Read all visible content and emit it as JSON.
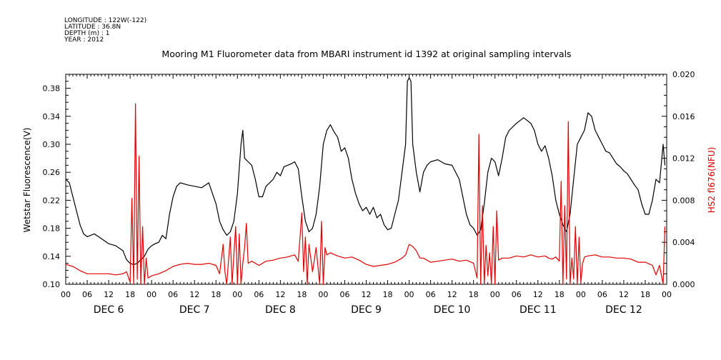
{
  "header_info": {
    "longitude": "LONGITUDE : 122W(-122)",
    "latitude": "LATITUDE : 36.8N",
    "depth": "DEPTH (m) : 1",
    "year": "YEAR : 2012"
  },
  "chart_data": {
    "type": "line",
    "title": "Mooring M1 Fluorometer data from MBARI instrument id 1392 at original sampling intervals",
    "xlabel": "",
    "ylabel": "Wetstar Fluorescence(V)",
    "y2label": "HS2 fl676(NFU)",
    "xlim": [
      0,
      168
    ],
    "ylim": [
      0.1,
      0.4
    ],
    "y2lim": [
      0.0,
      0.02
    ],
    "yticks": [
      "0.10",
      "0.14",
      "0.18",
      "0.22",
      "0.26",
      "0.30",
      "0.34",
      "0.38"
    ],
    "y2ticks": [
      "0.000",
      "0.004",
      "0.008",
      "0.012",
      "0.016",
      "0.020"
    ],
    "hour_tick_labels": [
      "00",
      "06",
      "12",
      "18",
      "00",
      "06",
      "12",
      "18",
      "00",
      "06",
      "12",
      "18",
      "00",
      "06",
      "12",
      "18",
      "00",
      "06",
      "12",
      "18",
      "00",
      "06",
      "12",
      "18",
      "00",
      "06",
      "12",
      "18",
      "00"
    ],
    "day_labels": [
      "DEC  6",
      "DEC  7",
      "DEC  8",
      "DEC  9",
      "DEC 10",
      "DEC 11",
      "DEC 12"
    ],
    "series": [
      {
        "name": "Wetstar Fluorescence(V)",
        "color": "#000000",
        "axis": "left",
        "points": [
          [
            0,
            0.25
          ],
          [
            1,
            0.245
          ],
          [
            2,
            0.225
          ],
          [
            3,
            0.205
          ],
          [
            4,
            0.185
          ],
          [
            5,
            0.172
          ],
          [
            6,
            0.168
          ],
          [
            8,
            0.172
          ],
          [
            10,
            0.165
          ],
          [
            12,
            0.158
          ],
          [
            14,
            0.155
          ],
          [
            16,
            0.148
          ],
          [
            17,
            0.135
          ],
          [
            18,
            0.13
          ],
          [
            19,
            0.128
          ],
          [
            20,
            0.13
          ],
          [
            21,
            0.135
          ],
          [
            22,
            0.14
          ],
          [
            23,
            0.15
          ],
          [
            24,
            0.155
          ],
          [
            25,
            0.158
          ],
          [
            26,
            0.16
          ],
          [
            27,
            0.17
          ],
          [
            28,
            0.165
          ],
          [
            29,
            0.2
          ],
          [
            30,
            0.225
          ],
          [
            31,
            0.24
          ],
          [
            32,
            0.245
          ],
          [
            34,
            0.242
          ],
          [
            36,
            0.24
          ],
          [
            38,
            0.238
          ],
          [
            40,
            0.245
          ],
          [
            41,
            0.23
          ],
          [
            42,
            0.215
          ],
          [
            43,
            0.19
          ],
          [
            44,
            0.178
          ],
          [
            45,
            0.17
          ],
          [
            46,
            0.175
          ],
          [
            47,
            0.19
          ],
          [
            48,
            0.23
          ],
          [
            49,
            0.3
          ],
          [
            49.5,
            0.32
          ],
          [
            50,
            0.28
          ],
          [
            51,
            0.275
          ],
          [
            52,
            0.27
          ],
          [
            53,
            0.25
          ],
          [
            54,
            0.225
          ],
          [
            55,
            0.225
          ],
          [
            56,
            0.24
          ],
          [
            57,
            0.245
          ],
          [
            58,
            0.25
          ],
          [
            59,
            0.26
          ],
          [
            60,
            0.255
          ],
          [
            61,
            0.268
          ],
          [
            62,
            0.27
          ],
          [
            63,
            0.272
          ],
          [
            64,
            0.275
          ],
          [
            65,
            0.265
          ],
          [
            66,
            0.225
          ],
          [
            67,
            0.19
          ],
          [
            68,
            0.175
          ],
          [
            69,
            0.18
          ],
          [
            70,
            0.2
          ],
          [
            71,
            0.24
          ],
          [
            72,
            0.3
          ],
          [
            73,
            0.32
          ],
          [
            74,
            0.328
          ],
          [
            75,
            0.318
          ],
          [
            76,
            0.31
          ],
          [
            77,
            0.29
          ],
          [
            78,
            0.295
          ],
          [
            79,
            0.28
          ],
          [
            80,
            0.25
          ],
          [
            81,
            0.23
          ],
          [
            82,
            0.215
          ],
          [
            83,
            0.205
          ],
          [
            84,
            0.21
          ],
          [
            85,
            0.2
          ],
          [
            86,
            0.21
          ],
          [
            87,
            0.195
          ],
          [
            88,
            0.2
          ],
          [
            89,
            0.185
          ],
          [
            90,
            0.178
          ],
          [
            91,
            0.18
          ],
          [
            92,
            0.2
          ],
          [
            93,
            0.22
          ],
          [
            94,
            0.26
          ],
          [
            95,
            0.3
          ],
          [
            95.5,
            0.39
          ],
          [
            96,
            0.395
          ],
          [
            96.5,
            0.39
          ],
          [
            97,
            0.3
          ],
          [
            98,
            0.26
          ],
          [
            99,
            0.232
          ],
          [
            100,
            0.26
          ],
          [
            101,
            0.27
          ],
          [
            102,
            0.275
          ],
          [
            104,
            0.278
          ],
          [
            106,
            0.272
          ],
          [
            108,
            0.27
          ],
          [
            110,
            0.25
          ],
          [
            111,
            0.225
          ],
          [
            112,
            0.2
          ],
          [
            113,
            0.185
          ],
          [
            114,
            0.18
          ],
          [
            115,
            0.17
          ],
          [
            116,
            0.178
          ],
          [
            117,
            0.215
          ],
          [
            118,
            0.26
          ],
          [
            119,
            0.28
          ],
          [
            120,
            0.275
          ],
          [
            121,
            0.255
          ],
          [
            122,
            0.28
          ],
          [
            123,
            0.31
          ],
          [
            124,
            0.32
          ],
          [
            125,
            0.325
          ],
          [
            126,
            0.33
          ],
          [
            127,
            0.334
          ],
          [
            128,
            0.338
          ],
          [
            129,
            0.334
          ],
          [
            130,
            0.33
          ],
          [
            131,
            0.32
          ],
          [
            132,
            0.3
          ],
          [
            133,
            0.29
          ],
          [
            134,
            0.298
          ],
          [
            135,
            0.28
          ],
          [
            136,
            0.255
          ],
          [
            137,
            0.22
          ],
          [
            138,
            0.2
          ],
          [
            139,
            0.185
          ],
          [
            140,
            0.175
          ],
          [
            141,
            0.2
          ],
          [
            142,
            0.25
          ],
          [
            143,
            0.3
          ],
          [
            144,
            0.31
          ],
          [
            145,
            0.32
          ],
          [
            146,
            0.345
          ],
          [
            147,
            0.34
          ],
          [
            148,
            0.32
          ],
          [
            149,
            0.31
          ],
          [
            150,
            0.3
          ],
          [
            151,
            0.29
          ],
          [
            152,
            0.288
          ],
          [
            153,
            0.28
          ],
          [
            154,
            0.272
          ],
          [
            155,
            0.268
          ],
          [
            156,
            0.262
          ],
          [
            157,
            0.258
          ],
          [
            158,
            0.25
          ],
          [
            159,
            0.242
          ],
          [
            160,
            0.235
          ],
          [
            161,
            0.215
          ],
          [
            162,
            0.2
          ],
          [
            163,
            0.2
          ],
          [
            164,
            0.22
          ],
          [
            165,
            0.25
          ],
          [
            166,
            0.245
          ],
          [
            167,
            0.3
          ],
          [
            167.5,
            0.27
          ]
        ]
      },
      {
        "name": "HS2 fl676(NFU)",
        "color": "#e00000",
        "axis": "right",
        "points": [
          [
            0,
            0.0019
          ],
          [
            2,
            0.0017
          ],
          [
            4,
            0.0013
          ],
          [
            6,
            0.001
          ],
          [
            8,
            0.001
          ],
          [
            10,
            0.001
          ],
          [
            12,
            0.001
          ],
          [
            14,
            0.0009
          ],
          [
            16,
            0.001
          ],
          [
            17,
            0.0012
          ],
          [
            18,
            0.0002
          ],
          [
            18.5,
            0.0082
          ],
          [
            19,
            0.0
          ],
          [
            19.5,
            0.0172
          ],
          [
            20,
            0.0005
          ],
          [
            20.5,
            0.0122
          ],
          [
            21,
            0.0
          ],
          [
            21.5,
            0.0055
          ],
          [
            22,
            0.0
          ],
          [
            22.5,
            0.0025
          ],
          [
            23,
            0.0006
          ],
          [
            24,
            0.0008
          ],
          [
            26,
            0.001
          ],
          [
            28,
            0.0013
          ],
          [
            30,
            0.0017
          ],
          [
            32,
            0.0019
          ],
          [
            34,
            0.002
          ],
          [
            36,
            0.0019
          ],
          [
            38,
            0.0019
          ],
          [
            40,
            0.002
          ],
          [
            42,
            0.0018
          ],
          [
            43,
            0.001
          ],
          [
            44,
            0.0038
          ],
          [
            44.5,
            0.0012
          ],
          [
            45,
            0.0
          ],
          [
            46,
            0.0045
          ],
          [
            46.5,
            0.0
          ],
          [
            47,
            0.0028
          ],
          [
            47.5,
            0.0055
          ],
          [
            48,
            0.0
          ],
          [
            48.5,
            0.0048
          ],
          [
            49,
            0.0
          ],
          [
            49.5,
            0.002
          ],
          [
            50,
            0.0035
          ],
          [
            50.5,
            0.0058
          ],
          [
            51,
            0.002
          ],
          [
            52,
            0.0022
          ],
          [
            54,
            0.0018
          ],
          [
            56,
            0.0022
          ],
          [
            58,
            0.0023
          ],
          [
            60,
            0.0025
          ],
          [
            62,
            0.0026
          ],
          [
            64,
            0.0028
          ],
          [
            65,
            0.0022
          ],
          [
            66,
            0.0068
          ],
          [
            66.5,
            0.0012
          ],
          [
            67,
            0.0045
          ],
          [
            67.5,
            0.0
          ],
          [
            68,
            0.0038
          ],
          [
            69,
            0.0012
          ],
          [
            70,
            0.0035
          ],
          [
            71,
            0.0
          ],
          [
            71.5,
            0.006
          ],
          [
            72,
            0.0
          ],
          [
            72.5,
            0.0035
          ],
          [
            73,
            0.0028
          ],
          [
            74,
            0.003
          ],
          [
            76,
            0.0027
          ],
          [
            78,
            0.0025
          ],
          [
            80,
            0.0026
          ],
          [
            82,
            0.0023
          ],
          [
            84,
            0.0019
          ],
          [
            86,
            0.0017
          ],
          [
            88,
            0.0018
          ],
          [
            90,
            0.0019
          ],
          [
            92,
            0.0021
          ],
          [
            94,
            0.0025
          ],
          [
            95,
            0.0028
          ],
          [
            96,
            0.0038
          ],
          [
            97,
            0.0036
          ],
          [
            98,
            0.0032
          ],
          [
            99,
            0.0025
          ],
          [
            100,
            0.0025
          ],
          [
            102,
            0.0021
          ],
          [
            104,
            0.0022
          ],
          [
            106,
            0.0023
          ],
          [
            108,
            0.0024
          ],
          [
            110,
            0.0022
          ],
          [
            112,
            0.0023
          ],
          [
            114,
            0.002
          ],
          [
            115,
            0.0006
          ],
          [
            115.5,
            0.0143
          ],
          [
            116,
            0.0
          ],
          [
            116.5,
            0.0075
          ],
          [
            117,
            0.0
          ],
          [
            117.5,
            0.0037
          ],
          [
            118,
            0.0008
          ],
          [
            118.5,
            0.003
          ],
          [
            119,
            0.0
          ],
          [
            119.5,
            0.0055
          ],
          [
            120,
            0.0
          ],
          [
            120.5,
            0.007
          ],
          [
            121,
            0.0023
          ],
          [
            122,
            0.0025
          ],
          [
            124,
            0.0025
          ],
          [
            126,
            0.0027
          ],
          [
            128,
            0.0026
          ],
          [
            130,
            0.0028
          ],
          [
            132,
            0.0026
          ],
          [
            134,
            0.0027
          ],
          [
            135,
            0.0025
          ],
          [
            136,
            0.0024
          ],
          [
            137,
            0.0026
          ],
          [
            138,
            0.0022
          ],
          [
            138.5,
            0.0098
          ],
          [
            139,
            0.0
          ],
          [
            139.5,
            0.0075
          ],
          [
            140,
            0.0005
          ],
          [
            140.5,
            0.0155
          ],
          [
            141,
            0.0
          ],
          [
            141.5,
            0.0025
          ],
          [
            142,
            0.0005
          ],
          [
            142.5,
            0.0055
          ],
          [
            143,
            0.0
          ],
          [
            143.5,
            0.0045
          ],
          [
            144,
            0.0002
          ],
          [
            144.5,
            0.002
          ],
          [
            145,
            0.0026
          ],
          [
            146,
            0.0027
          ],
          [
            148,
            0.0028
          ],
          [
            150,
            0.0026
          ],
          [
            152,
            0.0026
          ],
          [
            154,
            0.0025
          ],
          [
            156,
            0.0025
          ],
          [
            158,
            0.0024
          ],
          [
            160,
            0.0021
          ],
          [
            162,
            0.0021
          ],
          [
            164,
            0.0018
          ],
          [
            165,
            0.0009
          ],
          [
            166,
            0.0018
          ],
          [
            167,
            0.0
          ],
          [
            167.5,
            0.0055
          ]
        ]
      }
    ]
  }
}
